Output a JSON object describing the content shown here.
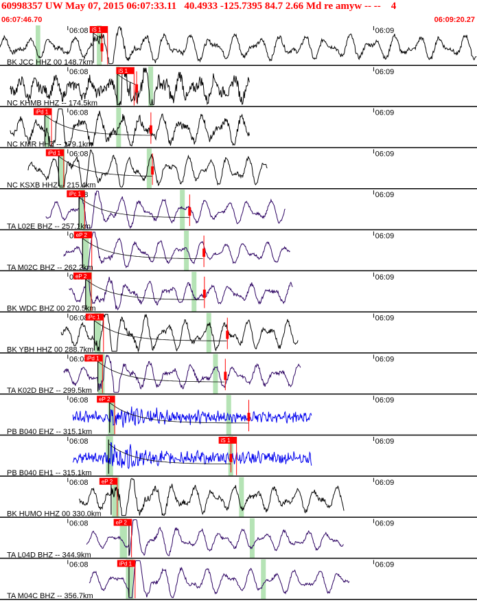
{
  "header": {
    "title": "60998357 UW May 07, 2015 06:07:33.11   40.4933 -125.7395 84.7 2.66 Md re amyw -- --    4",
    "start_time": "06:07:46.70",
    "end_time": "06:09:20.27"
  },
  "time_window": {
    "start_s": 0,
    "end_s": 93.57
  },
  "colors": {
    "header_text": "#ff0000",
    "pick": "#ff0000",
    "window": "#b5e3b5",
    "trace_dark": "#000000",
    "trace_blue": "#0000ee",
    "trace_purple": "#2a0060"
  },
  "traces": [
    {
      "label": "BK JCC HHZ 00 148.7km",
      "color": "#000000",
      "signal_start": 0,
      "signal_end": 93.57,
      "event_s": 18.3,
      "pick_label": "iS 1",
      "pick_s": 17.6,
      "mark_s": 20.0,
      "win_s": [
        7.0,
        19.4
      ],
      "time_labels": [
        "06:08",
        "06:09"
      ],
      "amp": 0.3,
      "noise": 0.05,
      "per": 4.5
    },
    {
      "label": "NC KHMB HHZ -- 174.5km",
      "color": "#000000",
      "signal_start": 2.0,
      "signal_end": 49.0,
      "event_s": 23.0,
      "pick_label": "iS 1",
      "pick_s": 22.8,
      "mark_s": 26.8,
      "win_s": [
        22.8,
        29.5
      ],
      "time_labels": [
        "06:08",
        "06:09"
      ],
      "amp": 0.28,
      "noise": 0.12,
      "per": 3.5
    },
    {
      "label": "NC KMR HHZ -- 179.1km",
      "color": "#000000",
      "signal_start": 2.0,
      "signal_end": 49.0,
      "event_s": 8.8,
      "pick_label": "iPd 1",
      "pick_s": 6.6,
      "mark_s": 29.6,
      "win_s": [
        8.7,
        23.2
      ],
      "time_labels": [
        "06:08",
        "06:09"
      ],
      "amp": 0.34,
      "noise": 0.08,
      "per": 4.0
    },
    {
      "label": "NC KSXB HHZ -- 215.4km",
      "color": "#000000",
      "signal_start": 5.5,
      "signal_end": 52.5,
      "event_s": 11.5,
      "pick_label": "iPd 1",
      "pick_s": 9.0,
      "mark_s": 29.9,
      "win_s": [
        11.6,
        29.2
      ],
      "time_labels": [
        "06:08",
        "06:09"
      ],
      "amp": 0.34,
      "noise": 0.04,
      "per": 3.8
    },
    {
      "label": "TA L02E BHZ -- 257.1km",
      "color": "#2a0060",
      "signal_start": 9.0,
      "signal_end": 56.0,
      "event_s": 15.5,
      "pick_label": "iPc 1",
      "pick_s": 13.1,
      "mark_s": 37.2,
      "win_s": [
        15.4,
        35.7
      ],
      "time_labels": [
        "06:08",
        "06:09"
      ],
      "amp": 0.28,
      "noise": 0.03,
      "per": 4.2
    },
    {
      "label": "TA M02C BHZ -- 262.2km",
      "color": "#2a0060",
      "signal_start": 12.5,
      "signal_end": 57.0,
      "event_s": 16.2,
      "pick_label": "eP 2",
      "pick_s": 14.5,
      "mark_s": 40.0,
      "win_s": [
        16.2,
        36.5
      ],
      "time_labels": [
        "06:08",
        "06:09"
      ],
      "amp": 0.26,
      "noise": 0.03,
      "per": 4.2
    },
    {
      "label": "BK WDC BHZ 00 270.5km",
      "color": "#2a0060",
      "signal_start": 13.5,
      "signal_end": 57.5,
      "event_s": 16.8,
      "pick_label": "eP 2",
      "pick_s": 14.4,
      "mark_s": 40.1,
      "win_s": [
        16.8,
        38.0
      ],
      "time_labels": [
        "06:08",
        "06:09"
      ],
      "amp": 0.24,
      "noise": 0.04,
      "per": 4.0
    },
    {
      "label": "BK YBH HHZ 00 288.7km",
      "color": "#000000",
      "signal_start": 12.0,
      "signal_end": 58.5,
      "event_s": 18.5,
      "pick_label": "iPc 1",
      "pick_s": 16.8,
      "mark_s": 44.6,
      "win_s": [
        18.5,
        40.9
      ],
      "time_labels": [
        "06:08",
        "06:09"
      ],
      "amp": 0.34,
      "noise": 0.05,
      "per": 4.0
    },
    {
      "label": "TA K02D BHZ -- 299.5km",
      "color": "#2a0060",
      "signal_start": 12.5,
      "signal_end": 59.0,
      "event_s": 19.2,
      "pick_label": "iPd 1",
      "pick_s": 16.6,
      "mark_s": 44.2,
      "win_s": [
        19.2,
        42.2
      ],
      "time_labels": [
        "06:08",
        "06:09"
      ],
      "amp": 0.26,
      "noise": 0.04,
      "per": 4.2
    },
    {
      "label": "PB B040 EHZ -- 315.1km",
      "color": "#0000ee",
      "signal_start": 14.3,
      "signal_end": 61.2,
      "event_s": 21.5,
      "pick_label": "eP 2",
      "pick_s": 19.0,
      "mark_s": 48.8,
      "win_s": [
        21.2,
        44.8
      ],
      "time_labels": [
        "06:08",
        "06:09"
      ],
      "amp": 0.08,
      "noise": 0.1,
      "per": 1.0
    },
    {
      "label": "PB B040 EH1 -- 315.1km",
      "color": "#0000ee",
      "signal_start": 14.3,
      "signal_end": 61.2,
      "event_s": 21.3,
      "pick_label": "iS 1",
      "pick_s": 42.9,
      "mark_s": 45.3,
      "win_s": [
        20.8,
        45.2
      ],
      "time_labels": [
        "06:08",
        "06:09"
      ],
      "amp": 0.08,
      "noise": 0.11,
      "per": 1.0
    },
    {
      "label": "BK HUMO HHZ 00 330.0km",
      "color": "#000000",
      "signal_start": 15.5,
      "signal_end": 67.5,
      "event_s": 21.8,
      "pick_label": "eP 2",
      "pick_s": 19.5,
      "mark_s": 21.8,
      "win_s": [
        22.0,
        47.3
      ],
      "time_labels": [
        "06:08",
        "06:09"
      ],
      "amp": 0.3,
      "noise": 0.05,
      "per": 4.0
    },
    {
      "label": "TA L04D BHZ -- 344.9km",
      "color": "#2a0060",
      "signal_start": 17.0,
      "signal_end": 67.5,
      "event_s": 25.3,
      "pick_label": "eP 2",
      "pick_s": 22.3,
      "mark_s": 25.3,
      "win_s": [
        23.5,
        49.4
      ],
      "time_labels": [
        "06:08",
        "06:09"
      ],
      "amp": 0.24,
      "noise": 0.03,
      "per": 4.2
    },
    {
      "label": "TA M04C BHZ -- 356.7km",
      "color": "#2a0060",
      "signal_start": 17.5,
      "signal_end": 68.5,
      "event_s": 25.3,
      "pick_label": "iPd 1",
      "pick_s": 23.0,
      "mark_s": 25.3,
      "win_s": [
        24.7,
        51.6
      ],
      "time_labels": [
        "06:08",
        "06:09"
      ],
      "amp": 0.28,
      "noise": 0.03,
      "per": 4.4
    }
  ]
}
